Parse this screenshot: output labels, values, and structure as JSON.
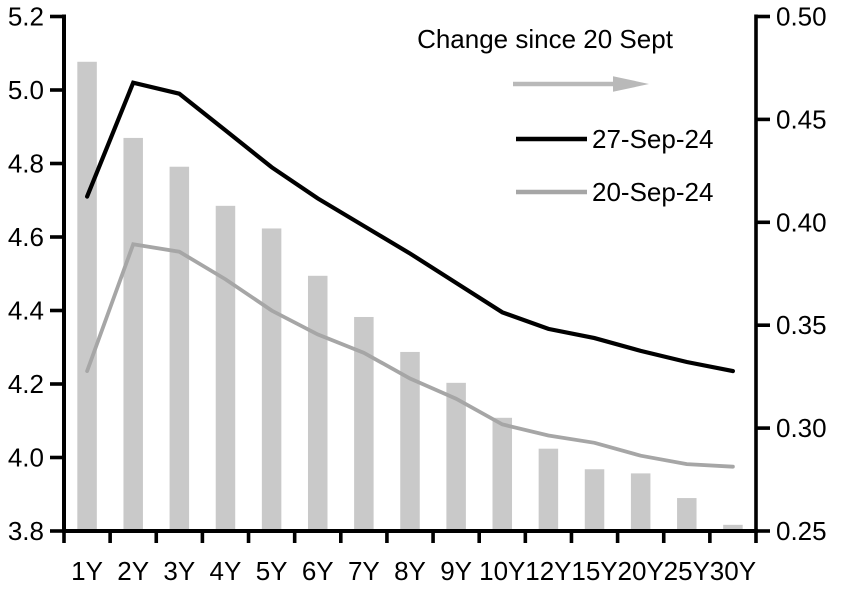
{
  "chart_data": {
    "type": "bar+line",
    "title": "",
    "categories": [
      "1Y",
      "2Y",
      "3Y",
      "4Y",
      "5Y",
      "6Y",
      "7Y",
      "8Y",
      "9Y",
      "10Y",
      "12Y",
      "15Y",
      "20Y",
      "25Y",
      "30Y"
    ],
    "left_axis": {
      "min": 3.8,
      "max": 5.2,
      "ticks": [
        {
          "label": "5.2",
          "value": 5.2
        },
        {
          "label": "5.0",
          "value": 5.0
        },
        {
          "label": "4.8",
          "value": 4.8
        },
        {
          "label": "4.6",
          "value": 4.6
        },
        {
          "label": "4.4",
          "value": 4.4
        },
        {
          "label": "4.2",
          "value": 4.2
        },
        {
          "label": "4.0",
          "value": 4.0
        },
        {
          "label": "3.8",
          "value": 3.8
        }
      ]
    },
    "right_axis": {
      "min": 0.25,
      "max": 0.5,
      "ticks": [
        {
          "label": "0.50",
          "value": 0.5
        },
        {
          "label": "0.45",
          "value": 0.45
        },
        {
          "label": "0.40",
          "value": 0.4
        },
        {
          "label": "0.35",
          "value": 0.35
        },
        {
          "label": "0.30",
          "value": 0.3
        },
        {
          "label": "0.25",
          "value": 0.25
        }
      ]
    },
    "series": [
      {
        "name": "Change since 20 Sept",
        "type": "bar",
        "axis": "right",
        "color": "#c9c9c9",
        "values": [
          0.478,
          0.441,
          0.427,
          0.408,
          0.397,
          0.374,
          0.354,
          0.337,
          0.322,
          0.305,
          0.29,
          0.28,
          0.278,
          0.266,
          0.253
        ]
      },
      {
        "name": "27-Sep-24",
        "type": "line",
        "axis": "left",
        "color": "#000000",
        "values": [
          4.71,
          5.02,
          4.99,
          4.89,
          4.79,
          4.705,
          4.63,
          4.555,
          4.475,
          4.395,
          4.35,
          4.325,
          4.29,
          4.26,
          4.235
        ]
      },
      {
        "name": "20-Sep-24",
        "type": "line",
        "axis": "left",
        "color": "#a6a6a6",
        "values": [
          4.235,
          4.58,
          4.56,
          4.485,
          4.4,
          4.335,
          4.285,
          4.215,
          4.16,
          4.09,
          4.06,
          4.04,
          4.005,
          3.982,
          3.975
        ]
      }
    ],
    "legend": {
      "position": "top-center-inside",
      "bar_series_label": "Change since 20 Sept",
      "arrow_icon": "right-arrow",
      "arrow_color": "#b9b9b9",
      "line1_label": "27-Sep-24",
      "line1_color": "#000000",
      "line2_label": "20-Sep-24",
      "line2_color": "#a6a6a6"
    },
    "colors": {
      "axis": "#000000",
      "bar": "#c9c9c9",
      "line_black": "#000000",
      "line_gray": "#a6a6a6",
      "background": "#ffffff"
    },
    "grid": false
  }
}
